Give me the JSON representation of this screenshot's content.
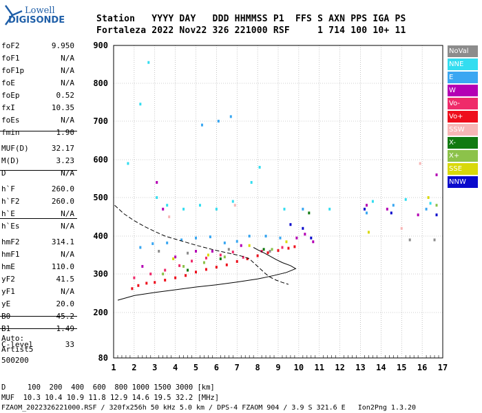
{
  "logo": {
    "top": "Lowell",
    "bottom": "DIGISONDE"
  },
  "header": {
    "line1": "Station   YYYY DAY   DDD HHMMSS P1  FFS S AXN PPS IGA PS",
    "line2": "Fortaleza 2022 Nov22 326 221000 RSF     1 714 100 10+ 11"
  },
  "params": [
    {
      "label": "foF2",
      "value": "9.950"
    },
    {
      "label": "foF1",
      "value": "N/A"
    },
    {
      "label": "foF1p",
      "value": "N/A"
    },
    {
      "label": "foE",
      "value": "N/A"
    },
    {
      "label": "foEp",
      "value": "0.52"
    },
    {
      "label": "fxI",
      "value": "10.35"
    },
    {
      "label": "foEs",
      "value": "N/A"
    },
    {
      "label": "fmin",
      "value": "1.90"
    },
    {
      "label": "MUF(D)",
      "value": "32.17"
    },
    {
      "label": "M(D)",
      "value": "3.23"
    },
    {
      "label": "D",
      "value": "N/A"
    },
    {
      "label": "h`F",
      "value": "260.0"
    },
    {
      "label": "h`F2",
      "value": "260.0"
    },
    {
      "label": "h`E",
      "value": "N/A"
    },
    {
      "label": "h`Es",
      "value": "N/A"
    },
    {
      "label": "hmF2",
      "value": "314.1"
    },
    {
      "label": "hmF1",
      "value": "N/A"
    },
    {
      "label": "hmE",
      "value": "110.0"
    },
    {
      "label": "yF2",
      "value": "41.5"
    },
    {
      "label": "yF1",
      "value": "N/A"
    },
    {
      "label": "yE",
      "value": "20.0"
    },
    {
      "label": "B0",
      "value": "45.2"
    },
    {
      "label": "B1",
      "value": "1.49"
    },
    {
      "label": "C-level",
      "value": "33"
    }
  ],
  "auto": {
    "line1": "Auto:",
    "line2": "Artist5",
    "line3": "500200"
  },
  "legend": [
    {
      "label": "NoVal",
      "color": "#8c8c8c"
    },
    {
      "label": "NNE",
      "color": "#33ddf0"
    },
    {
      "label": "E",
      "color": "#3aa7f2"
    },
    {
      "label": "W",
      "color": "#b400b4"
    },
    {
      "label": "Vo-",
      "color": "#ef2b6a"
    },
    {
      "label": "Vo+",
      "color": "#ee0f1c"
    },
    {
      "label": "SSW",
      "color": "#f7b6b6"
    },
    {
      "label": "X-",
      "color": "#117a11"
    },
    {
      "label": "X+",
      "color": "#8cc24a"
    },
    {
      "label": "SSE",
      "color": "#d9d90a"
    },
    {
      "label": "NNW",
      "color": "#0a0acc"
    }
  ],
  "footer": {
    "d_line": "D     100  200  400  600  800 1000 1500 3000 [km]",
    "muf_line": "MUF  10.3 10.4 10.9 11.8 12.9 14.6 19.5 32.2 [MHz]",
    "file_line": "FZAOM_2022326221000.RSF / 320fx256h 50 kHz 5.0 km / DPS-4 FZAOM 904 / 3.9 S 321.6 E   Ion2Png 1.3.20"
  },
  "chart_data": {
    "type": "scatter",
    "title": "",
    "xlabel": "",
    "ylabel": "",
    "xlim": [
      1,
      17
    ],
    "ylim": [
      80,
      900
    ],
    "x_ticks": [
      "1",
      "2",
      "3",
      "4",
      "5",
      "6",
      "7",
      "8",
      "9",
      "10",
      "11",
      "12",
      "13",
      "14",
      "15",
      "16",
      "17"
    ],
    "y_ticks": [
      "80",
      "200",
      "300",
      "400",
      "500",
      "600",
      "700",
      "800",
      "900"
    ],
    "grid": true,
    "series": [
      {
        "name": "Vo+",
        "color": "#ee0f1c",
        "points": [
          [
            1.9,
            262
          ],
          [
            2.2,
            270
          ],
          [
            2.6,
            276
          ],
          [
            3.0,
            278
          ],
          [
            3.5,
            284
          ],
          [
            4.0,
            290
          ],
          [
            4.5,
            296
          ],
          [
            5.0,
            305
          ],
          [
            5.5,
            312
          ],
          [
            6.0,
            318
          ],
          [
            6.5,
            324
          ],
          [
            7.0,
            333
          ],
          [
            7.5,
            340
          ],
          [
            8.0,
            348
          ],
          [
            8.5,
            356
          ],
          [
            9.0,
            362
          ],
          [
            9.5,
            368
          ],
          [
            9.8,
            372
          ]
        ]
      },
      {
        "name": "Vo-",
        "color": "#ef2b6a",
        "points": [
          [
            2.0,
            290
          ],
          [
            2.8,
            300
          ],
          [
            3.5,
            310
          ],
          [
            4.2,
            322
          ],
          [
            4.8,
            334
          ],
          [
            5.5,
            342
          ],
          [
            6.2,
            350
          ],
          [
            6.8,
            358
          ],
          [
            7.3,
            344
          ],
          [
            8.2,
            360
          ],
          [
            9.2,
            370
          ]
        ]
      },
      {
        "name": "W",
        "color": "#b400b4",
        "points": [
          [
            2.4,
            320
          ],
          [
            3.1,
            540
          ],
          [
            3.4,
            470
          ],
          [
            4.0,
            345
          ],
          [
            5.0,
            360
          ],
          [
            5.8,
            360
          ],
          [
            7.2,
            375
          ],
          [
            9.9,
            395
          ],
          [
            10.3,
            405
          ],
          [
            10.7,
            385
          ],
          [
            13.3,
            480
          ],
          [
            14.3,
            470
          ],
          [
            15.8,
            455
          ],
          [
            16.7,
            560
          ]
        ]
      },
      {
        "name": "E",
        "color": "#3aa7f2",
        "points": [
          [
            2.3,
            370
          ],
          [
            2.9,
            380
          ],
          [
            3.6,
            382
          ],
          [
            4.3,
            390
          ],
          [
            5.0,
            395
          ],
          [
            5.7,
            398
          ],
          [
            6.4,
            382
          ],
          [
            7.0,
            386
          ],
          [
            7.6,
            400
          ],
          [
            8.4,
            400
          ],
          [
            9.1,
            395
          ],
          [
            5.3,
            690
          ],
          [
            6.1,
            700
          ],
          [
            6.7,
            712
          ],
          [
            10.2,
            470
          ],
          [
            13.3,
            460
          ],
          [
            14.6,
            480
          ],
          [
            16.2,
            470
          ]
        ]
      },
      {
        "name": "NNE",
        "color": "#33ddf0",
        "points": [
          [
            1.7,
            590
          ],
          [
            2.3,
            745
          ],
          [
            2.7,
            855
          ],
          [
            3.1,
            500
          ],
          [
            3.6,
            480
          ],
          [
            4.4,
            470
          ],
          [
            5.2,
            480
          ],
          [
            6.0,
            470
          ],
          [
            6.8,
            490
          ],
          [
            7.7,
            540
          ],
          [
            8.1,
            580
          ],
          [
            9.3,
            470
          ],
          [
            11.5,
            470
          ],
          [
            13.6,
            490
          ],
          [
            15.2,
            495
          ],
          [
            16.4,
            485
          ]
        ]
      },
      {
        "name": "NoVal",
        "color": "#8c8c8c",
        "points": [
          [
            3.2,
            360
          ],
          [
            4.6,
            355
          ],
          [
            6.6,
            365
          ],
          [
            8.6,
            360
          ],
          [
            15.4,
            390
          ],
          [
            16.6,
            390
          ]
        ]
      },
      {
        "name": "X+",
        "color": "#8cc24a",
        "points": [
          [
            3.4,
            300
          ],
          [
            4.4,
            320
          ],
          [
            5.4,
            330
          ],
          [
            6.4,
            345
          ],
          [
            8.7,
            365
          ],
          [
            16.7,
            480
          ]
        ]
      },
      {
        "name": "X-",
        "color": "#117a11",
        "points": [
          [
            4.6,
            310
          ],
          [
            6.2,
            340
          ],
          [
            8.3,
            365
          ],
          [
            10.5,
            460
          ]
        ]
      },
      {
        "name": "SSE",
        "color": "#d9d90a",
        "points": [
          [
            3.9,
            340
          ],
          [
            5.6,
            350
          ],
          [
            7.6,
            375
          ],
          [
            9.4,
            385
          ],
          [
            13.4,
            410
          ],
          [
            16.3,
            500
          ]
        ]
      },
      {
        "name": "SSW",
        "color": "#f7b6b6",
        "points": [
          [
            3.7,
            450
          ],
          [
            6.9,
            480
          ],
          [
            15.0,
            420
          ],
          [
            15.9,
            590
          ]
        ]
      },
      {
        "name": "NNW",
        "color": "#0a0acc",
        "points": [
          [
            9.6,
            430
          ],
          [
            10.2,
            420
          ],
          [
            10.6,
            395
          ],
          [
            13.2,
            470
          ],
          [
            14.5,
            460
          ],
          [
            16.7,
            455
          ]
        ]
      }
    ],
    "trace_curve": [
      [
        1.05,
        480
      ],
      [
        1.5,
        458
      ],
      [
        2.0,
        440
      ],
      [
        2.5,
        425
      ],
      [
        3.0,
        412
      ],
      [
        3.5,
        400
      ],
      [
        4.0,
        392
      ],
      [
        4.5,
        384
      ],
      [
        5.0,
        376
      ],
      [
        5.5,
        369
      ],
      [
        6.0,
        362
      ],
      [
        6.5,
        356
      ],
      [
        7.0,
        350
      ],
      [
        7.3,
        346
      ],
      [
        7.6,
        340
      ],
      [
        7.8,
        330
      ],
      [
        8.0,
        320
      ],
      [
        8.2,
        310
      ],
      [
        8.4,
        300
      ],
      [
        8.6,
        292
      ],
      [
        8.9,
        284
      ],
      [
        9.2,
        278
      ],
      [
        9.5,
        273
      ]
    ],
    "profile_curve": [
      [
        1.2,
        232
      ],
      [
        2.0,
        244
      ],
      [
        3.0,
        252
      ],
      [
        4.0,
        259
      ],
      [
        5.0,
        266
      ],
      [
        6.0,
        272
      ],
      [
        7.0,
        279
      ],
      [
        8.0,
        287
      ],
      [
        8.8,
        296
      ],
      [
        9.4,
        304
      ],
      [
        9.85,
        314
      ],
      [
        9.6,
        322
      ],
      [
        9.2,
        330
      ],
      [
        8.9,
        338
      ],
      [
        8.6,
        347
      ],
      [
        8.3,
        356
      ],
      [
        8.0,
        364
      ],
      [
        7.8,
        370
      ]
    ]
  }
}
